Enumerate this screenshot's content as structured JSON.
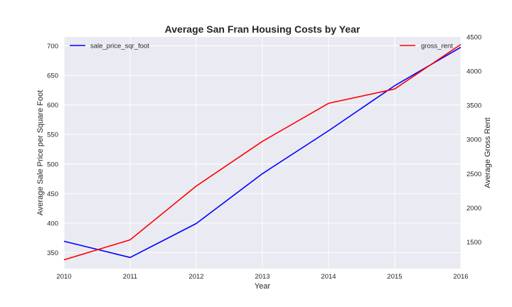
{
  "chart_data": {
    "type": "line",
    "title": "Average San Fran Housing Costs by Year",
    "xlabel": "Year",
    "x": [
      2010,
      2011,
      2012,
      2013,
      2014,
      2015,
      2016
    ],
    "x_ticks": [
      "2010",
      "2011",
      "2012",
      "2013",
      "2014",
      "2015",
      "2016"
    ],
    "xlim": [
      2010,
      2016
    ],
    "grid": true,
    "plot_background": "#eaeaf2",
    "left_axis": {
      "ylabel": "Average Sale Price per Square Foot",
      "ylim": [
        323,
        715
      ],
      "ticks": [
        350,
        400,
        450,
        500,
        550,
        600,
        650,
        700
      ]
    },
    "right_axis": {
      "ylabel": "Average Gross Rent",
      "ylim": [
        1110,
        4500
      ],
      "ticks": [
        1500,
        2000,
        2500,
        3000,
        3500,
        4000,
        4500
      ]
    },
    "series": [
      {
        "name": "sale_price_sqr_foot",
        "axis": "left",
        "color": "#0000ff",
        "legend_position": "top-left",
        "values": [
          369.3,
          341.9,
          399.4,
          483.6,
          556.3,
          632.5,
          697.6
        ]
      },
      {
        "name": "gross_rent",
        "axis": "right",
        "color": "#ff0000",
        "legend_position": "top-right",
        "values": [
          1239,
          1531,
          2318,
          2972,
          3529,
          3739,
          4391
        ]
      }
    ]
  }
}
